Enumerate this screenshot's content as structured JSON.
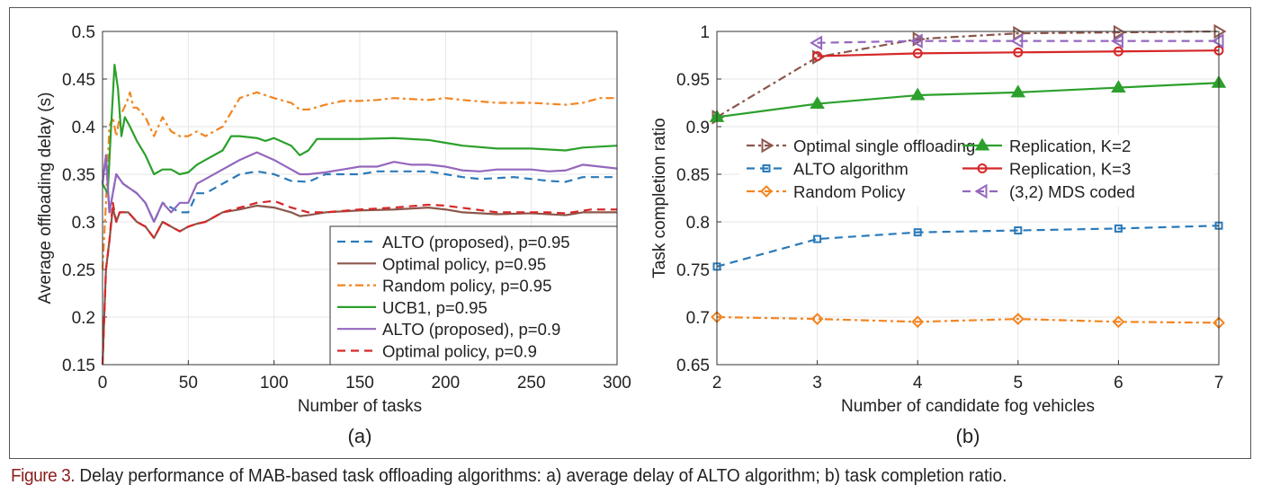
{
  "caption": {
    "label": "Figure 3.",
    "text": " Delay performance of MAB-based task offloading algorithms: a) average delay of ALTO algorithm; b) task completion ratio."
  },
  "chart_data": [
    {
      "type": "line",
      "panel_label": "(a)",
      "xlabel": "Number of tasks",
      "ylabel": "Average offloading delay (s)",
      "xlim": [
        0,
        300
      ],
      "ylim": [
        0.15,
        0.5
      ],
      "xticks": [
        0,
        50,
        100,
        150,
        200,
        250,
        300
      ],
      "yticks": [
        0.15,
        0.2,
        0.25,
        0.3,
        0.35,
        0.4,
        0.45,
        0.5
      ],
      "ytick_labels": [
        "0.15",
        "0.2",
        "0.25",
        "0.3",
        "0.35",
        "0.4",
        "0.45",
        "0.5"
      ],
      "grid": true,
      "legend_placement": "bottom-right",
      "series": [
        {
          "name": "ALTO (proposed), p=0.95",
          "color": "#2a7ab9",
          "dash": "dashed",
          "x": [
            0,
            2,
            4,
            8,
            12,
            16,
            20,
            25,
            30,
            35,
            40,
            45,
            50,
            55,
            60,
            70,
            80,
            90,
            100,
            110,
            120,
            130,
            140,
            150,
            160,
            170,
            180,
            190,
            200,
            210,
            220,
            230,
            240,
            250,
            260,
            270,
            280,
            290,
            300
          ],
          "y": [
            0.34,
            0.37,
            0.31,
            0.35,
            0.34,
            0.335,
            0.33,
            0.32,
            0.3,
            0.32,
            0.315,
            0.31,
            0.31,
            0.33,
            0.33,
            0.34,
            0.35,
            0.353,
            0.35,
            0.343,
            0.342,
            0.35,
            0.35,
            0.35,
            0.353,
            0.353,
            0.353,
            0.353,
            0.35,
            0.347,
            0.345,
            0.346,
            0.347,
            0.345,
            0.343,
            0.342,
            0.347,
            0.347,
            0.347
          ]
        },
        {
          "name": "Optimal policy, p=0.95",
          "color": "#8c564b",
          "dash": "solid",
          "x": [
            0,
            2,
            4,
            6,
            8,
            10,
            15,
            20,
            25,
            30,
            35,
            40,
            45,
            50,
            55,
            60,
            70,
            80,
            90,
            100,
            110,
            115,
            120,
            130,
            150,
            170,
            190,
            200,
            210,
            230,
            250,
            270,
            280,
            300
          ],
          "y": [
            0.15,
            0.25,
            0.28,
            0.315,
            0.3,
            0.31,
            0.31,
            0.3,
            0.295,
            0.283,
            0.3,
            0.295,
            0.29,
            0.295,
            0.298,
            0.3,
            0.31,
            0.313,
            0.317,
            0.315,
            0.31,
            0.306,
            0.307,
            0.31,
            0.312,
            0.313,
            0.315,
            0.313,
            0.31,
            0.308,
            0.309,
            0.307,
            0.31,
            0.31
          ]
        },
        {
          "name": "Random policy, p=0.95",
          "color": "#f28522",
          "dash": "dashdot",
          "x": [
            0,
            2,
            4,
            6,
            8,
            10,
            14,
            16,
            18,
            20,
            25,
            30,
            35,
            40,
            45,
            50,
            55,
            60,
            70,
            80,
            90,
            100,
            110,
            115,
            120,
            130,
            140,
            150,
            160,
            170,
            190,
            200,
            210,
            230,
            250,
            270,
            280,
            290,
            300
          ],
          "y": [
            0.25,
            0.32,
            0.4,
            0.41,
            0.39,
            0.41,
            0.425,
            0.436,
            0.42,
            0.42,
            0.41,
            0.39,
            0.41,
            0.395,
            0.39,
            0.39,
            0.395,
            0.39,
            0.4,
            0.43,
            0.436,
            0.43,
            0.425,
            0.418,
            0.418,
            0.423,
            0.427,
            0.427,
            0.428,
            0.43,
            0.428,
            0.43,
            0.428,
            0.425,
            0.425,
            0.423,
            0.425,
            0.43,
            0.43
          ]
        },
        {
          "name": "UCB1, p=0.95",
          "color": "#2ca02c",
          "dash": "solid",
          "x": [
            0,
            3,
            5,
            7,
            9,
            11,
            13,
            16,
            20,
            25,
            30,
            35,
            40,
            45,
            50,
            55,
            60,
            70,
            75,
            80,
            90,
            95,
            100,
            110,
            115,
            120,
            125,
            135,
            150,
            170,
            190,
            200,
            210,
            230,
            250,
            270,
            280,
            300
          ],
          "y": [
            0.34,
            0.33,
            0.4,
            0.465,
            0.44,
            0.39,
            0.41,
            0.4,
            0.385,
            0.37,
            0.35,
            0.355,
            0.355,
            0.35,
            0.352,
            0.36,
            0.365,
            0.375,
            0.39,
            0.39,
            0.388,
            0.385,
            0.388,
            0.38,
            0.37,
            0.375,
            0.387,
            0.387,
            0.387,
            0.388,
            0.386,
            0.383,
            0.38,
            0.377,
            0.377,
            0.375,
            0.378,
            0.38
          ]
        },
        {
          "name": "ALTO (proposed), p=0.9",
          "color": "#9467bd",
          "dash": "solid",
          "x": [
            0,
            2,
            4,
            8,
            12,
            16,
            20,
            25,
            30,
            35,
            40,
            45,
            50,
            55,
            60,
            70,
            80,
            90,
            100,
            110,
            115,
            120,
            130,
            140,
            150,
            160,
            170,
            180,
            190,
            200,
            210,
            220,
            230,
            240,
            250,
            260,
            270,
            280,
            290,
            300
          ],
          "y": [
            0.34,
            0.37,
            0.31,
            0.35,
            0.34,
            0.335,
            0.33,
            0.32,
            0.3,
            0.32,
            0.31,
            0.32,
            0.32,
            0.34,
            0.345,
            0.355,
            0.365,
            0.373,
            0.365,
            0.355,
            0.35,
            0.35,
            0.352,
            0.355,
            0.358,
            0.358,
            0.363,
            0.36,
            0.36,
            0.358,
            0.354,
            0.353,
            0.355,
            0.355,
            0.355,
            0.353,
            0.354,
            0.36,
            0.358,
            0.356
          ]
        },
        {
          "name": "Optimal policy, p=0.9",
          "color": "#d62728",
          "dash": "dashed",
          "x": [
            0,
            2,
            4,
            6,
            8,
            10,
            15,
            20,
            25,
            30,
            35,
            40,
            45,
            50,
            55,
            60,
            70,
            80,
            90,
            100,
            110,
            120,
            130,
            150,
            170,
            190,
            200,
            230,
            260,
            270,
            285,
            300
          ],
          "y": [
            0.15,
            0.25,
            0.28,
            0.32,
            0.3,
            0.31,
            0.31,
            0.3,
            0.295,
            0.283,
            0.3,
            0.295,
            0.29,
            0.295,
            0.298,
            0.3,
            0.31,
            0.315,
            0.32,
            0.322,
            0.315,
            0.31,
            0.31,
            0.313,
            0.315,
            0.318,
            0.317,
            0.31,
            0.31,
            0.309,
            0.313,
            0.313
          ]
        }
      ]
    },
    {
      "type": "line",
      "panel_label": "(b)",
      "xlabel": "Number of candidate fog vehicles",
      "ylabel": "Task completion ratio",
      "xlim": [
        2,
        7
      ],
      "ylim": [
        0.65,
        1
      ],
      "xticks": [
        2,
        3,
        4,
        5,
        6,
        7
      ],
      "yticks": [
        0.65,
        0.7,
        0.75,
        0.8,
        0.85,
        0.9,
        0.95,
        1
      ],
      "ytick_labels": [
        "0.65",
        "0.7",
        "0.75",
        "0.8",
        "0.85",
        "0.9",
        "0.95",
        "1"
      ],
      "grid": true,
      "legend_placement": "center",
      "series": [
        {
          "name": "Optimal single offloading",
          "color": "#8c564b",
          "dash": "dashdot",
          "marker": "triangle-right",
          "x": [
            2,
            3,
            4,
            5,
            6,
            7
          ],
          "y": [
            0.91,
            0.973,
            0.992,
            0.998,
            0.999,
            1.0
          ]
        },
        {
          "name": "ALTO algorithm",
          "color": "#2a7ab9",
          "dash": "dashed",
          "marker": "square",
          "x": [
            2,
            3,
            4,
            5,
            6,
            7
          ],
          "y": [
            0.753,
            0.782,
            0.789,
            0.791,
            0.793,
            0.796
          ]
        },
        {
          "name": "Random Policy",
          "color": "#f28522",
          "dash": "dashdot",
          "marker": "diamond",
          "x": [
            2,
            3,
            4,
            5,
            6,
            7
          ],
          "y": [
            0.7,
            0.698,
            0.695,
            0.698,
            0.695,
            0.694
          ]
        },
        {
          "name": "Replication, K=2",
          "color": "#2ca02c",
          "dash": "solid",
          "marker": "triangle-up",
          "x": [
            2,
            3,
            4,
            5,
            6,
            7
          ],
          "y": [
            0.91,
            0.924,
            0.933,
            0.936,
            0.941,
            0.946
          ]
        },
        {
          "name": "Replication, K=3",
          "color": "#d62728",
          "dash": "solid",
          "marker": "circle",
          "x": [
            3,
            4,
            5,
            6,
            7
          ],
          "y": [
            0.974,
            0.977,
            0.978,
            0.979,
            0.98
          ]
        },
        {
          "name": "(3,2) MDS coded",
          "color": "#9467bd",
          "dash": "dashed",
          "marker": "triangle-left",
          "x": [
            3,
            4,
            5,
            6,
            7
          ],
          "y": [
            0.988,
            0.99,
            0.99,
            0.99,
            0.99
          ]
        }
      ]
    }
  ]
}
